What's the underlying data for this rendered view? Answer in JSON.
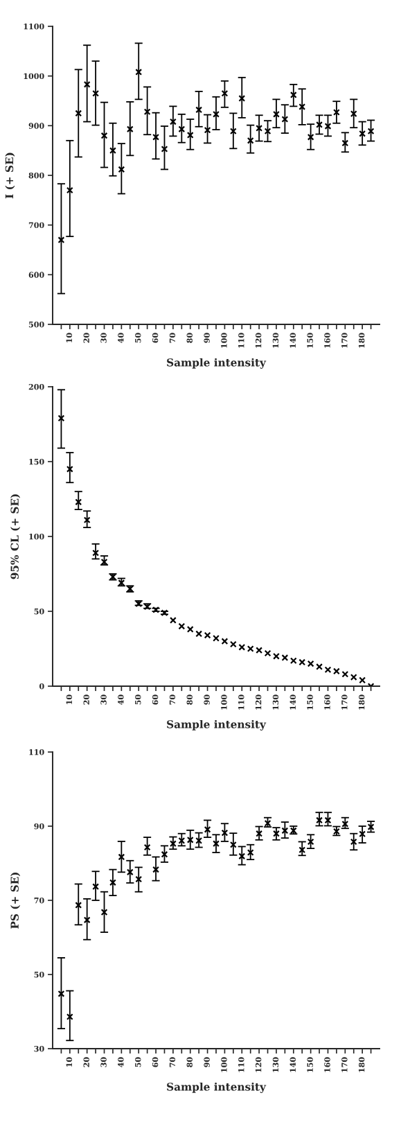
{
  "chart_data": [
    {
      "type": "scatter",
      "xlabel": "Sample intensity",
      "ylabel": "I (+ SE)",
      "marker": "cross",
      "grid": false,
      "legend": false,
      "x": [
        5,
        10,
        15,
        20,
        25,
        30,
        35,
        40,
        45,
        50,
        55,
        60,
        65,
        70,
        75,
        80,
        85,
        90,
        95,
        100,
        105,
        110,
        115,
        120,
        125,
        130,
        135,
        140,
        145,
        150,
        155,
        160,
        165,
        170,
        175,
        180,
        185
      ],
      "xlim": [
        0,
        190
      ],
      "ylim": [
        500,
        1100
      ],
      "yticks": [
        500,
        600,
        700,
        800,
        900,
        1000,
        1100
      ],
      "xticks": [
        {
          "value": 5,
          "label": null
        },
        10,
        {
          "value": 15,
          "label": null
        },
        20,
        {
          "value": 25,
          "label": null
        },
        30,
        {
          "value": 35,
          "label": null
        },
        40,
        {
          "value": 45,
          "label": null
        },
        50,
        {
          "value": 55,
          "label": null
        },
        60,
        {
          "value": 65,
          "label": null
        },
        70,
        {
          "value": 75,
          "label": null
        },
        80,
        {
          "value": 85,
          "label": null
        },
        90,
        {
          "value": 95,
          "label": null
        },
        100,
        {
          "value": 105,
          "label": null
        },
        110,
        {
          "value": 115,
          "label": null
        },
        120,
        {
          "value": 125,
          "label": null
        },
        130,
        {
          "value": 135,
          "label": null
        },
        140,
        {
          "value": 145,
          "label": null
        },
        150,
        {
          "value": 155,
          "label": null
        },
        160,
        {
          "value": 165,
          "label": null
        },
        170,
        {
          "value": 175,
          "label": null
        },
        180,
        {
          "value": 185,
          "label": null
        }
      ],
      "series": [
        {
          "color": "#000000",
          "values": [
            670,
            770,
            925,
            983,
            965,
            880,
            850,
            812,
            893,
            1008,
            928,
            877,
            853,
            908,
            893,
            881,
            932,
            891,
            923,
            965,
            889,
            955,
            870,
            895,
            889,
            923,
            913,
            962,
            938,
            877,
            902,
            899,
            927,
            865,
            924,
            884,
            889
          ],
          "errors": [
            [
              562,
              783
            ],
            [
              677,
              870
            ],
            [
              837,
              1013
            ],
            [
              908,
              1062
            ],
            [
              901,
              1030
            ],
            [
              816,
              947
            ],
            [
              799,
              905
            ],
            [
              763,
              864
            ],
            [
              840,
              948
            ],
            [
              953,
              1066
            ],
            [
              882,
              978
            ],
            [
              833,
              926
            ],
            [
              812,
              899
            ],
            [
              879,
              939
            ],
            [
              866,
              923
            ],
            [
              852,
              913
            ],
            [
              898,
              969
            ],
            [
              865,
              922
            ],
            [
              892,
              958
            ],
            [
              937,
              990
            ],
            [
              854,
              925
            ],
            [
              916,
              997
            ],
            [
              845,
              901
            ],
            [
              869,
              921
            ],
            [
              868,
              910
            ],
            [
              896,
              953
            ],
            [
              885,
              942
            ],
            [
              939,
              983
            ],
            [
              902,
              974
            ],
            [
              852,
              903
            ],
            [
              883,
              921
            ],
            [
              879,
              921
            ],
            [
              905,
              949
            ],
            [
              847,
              886
            ],
            [
              896,
              953
            ],
            [
              861,
              908
            ],
            [
              869,
              911
            ]
          ]
        }
      ]
    },
    {
      "type": "scatter",
      "xlabel": "Sample intensity",
      "ylabel": "95% CL (+ SE)",
      "marker": "cross",
      "grid": false,
      "legend": false,
      "x": [
        5,
        10,
        15,
        20,
        25,
        30,
        35,
        40,
        45,
        50,
        55,
        60,
        65,
        70,
        75,
        80,
        85,
        90,
        95,
        100,
        105,
        110,
        115,
        120,
        125,
        130,
        135,
        140,
        145,
        150,
        155,
        160,
        165,
        170,
        175,
        180,
        185
      ],
      "xlim": [
        0,
        190
      ],
      "ylim": [
        0,
        200
      ],
      "yticks": [
        0,
        50,
        100,
        150,
        200
      ],
      "xticks": [
        {
          "value": 5,
          "label": null
        },
        10,
        {
          "value": 15,
          "label": null
        },
        20,
        {
          "value": 25,
          "label": null
        },
        30,
        {
          "value": 35,
          "label": null
        },
        40,
        {
          "value": 45,
          "label": null
        },
        50,
        {
          "value": 55,
          "label": null
        },
        60,
        {
          "value": 65,
          "label": null
        },
        70,
        {
          "value": 75,
          "label": null
        },
        80,
        {
          "value": 85,
          "label": null
        },
        90,
        {
          "value": 95,
          "label": null
        },
        100,
        {
          "value": 105,
          "label": null
        },
        110,
        {
          "value": 115,
          "label": null
        },
        120,
        {
          "value": 125,
          "label": null
        },
        130,
        {
          "value": 135,
          "label": null
        },
        140,
        {
          "value": 145,
          "label": null
        },
        150,
        {
          "value": 155,
          "label": null
        },
        160,
        {
          "value": 165,
          "label": null
        },
        170,
        {
          "value": 175,
          "label": null
        },
        180,
        {
          "value": 185,
          "label": null
        }
      ],
      "series": [
        {
          "color": "#000000",
          "values": [
            179,
            145,
            123,
            111,
            89,
            83,
            73,
            69,
            65,
            55,
            53,
            51,
            49,
            44,
            40,
            38,
            35,
            34,
            32,
            30,
            28,
            26,
            25,
            24,
            22,
            20,
            19,
            17,
            16,
            15,
            13,
            11,
            10,
            8,
            6,
            4,
            0
          ],
          "errors": [
            [
              159,
              198
            ],
            [
              136,
              156
            ],
            [
              118,
              130
            ],
            [
              106,
              117
            ],
            [
              85,
              95
            ],
            [
              81,
              87
            ],
            [
              71,
              75
            ],
            [
              67,
              72
            ],
            [
              63,
              67
            ],
            [
              54,
              57
            ],
            [
              52,
              55
            ],
            [
              50,
              52
            ],
            [
              48,
              50
            ],
            null,
            null,
            null,
            null,
            null,
            null,
            null,
            null,
            null,
            null,
            null,
            null,
            null,
            null,
            null,
            null,
            null,
            null,
            null,
            null,
            null,
            null,
            null,
            null
          ]
        }
      ]
    },
    {
      "type": "scatter",
      "xlabel": "Sample intensity",
      "ylabel": "PS (+ SE)",
      "marker": "cross",
      "grid": false,
      "legend": false,
      "x": [
        5,
        10,
        15,
        20,
        25,
        30,
        35,
        40,
        45,
        50,
        55,
        60,
        65,
        70,
        75,
        80,
        85,
        90,
        95,
        100,
        105,
        110,
        115,
        120,
        125,
        130,
        135,
        140,
        145,
        150,
        155,
        160,
        165,
        170,
        175,
        180,
        185
      ],
      "xlim": [
        0,
        190
      ],
      "ylim": [
        30,
        110
      ],
      "yticks": [
        30,
        50,
        70,
        90,
        110
      ],
      "xticks": [
        {
          "value": 5,
          "label": null
        },
        10,
        {
          "value": 15,
          "label": null
        },
        20,
        {
          "value": 25,
          "label": null
        },
        30,
        {
          "value": 35,
          "label": null
        },
        40,
        {
          "value": 45,
          "label": null
        },
        50,
        {
          "value": 55,
          "label": null
        },
        60,
        {
          "value": 65,
          "label": null
        },
        70,
        {
          "value": 75,
          "label": null
        },
        80,
        {
          "value": 85,
          "label": null
        },
        90,
        {
          "value": 95,
          "label": null
        },
        100,
        {
          "value": 105,
          "label": null
        },
        110,
        {
          "value": 115,
          "label": null
        },
        120,
        {
          "value": 125,
          "label": null
        },
        130,
        {
          "value": 135,
          "label": null
        },
        140,
        {
          "value": 145,
          "label": null
        },
        150,
        {
          "value": 155,
          "label": null
        },
        160,
        {
          "value": 165,
          "label": null
        },
        170,
        {
          "value": 175,
          "label": null
        },
        180,
        {
          "value": 185,
          "label": null
        }
      ],
      "series": [
        {
          "color": "#000000",
          "values": [
            44.8,
            38.6,
            68.7,
            64.7,
            73.7,
            66.8,
            74.8,
            81.7,
            77.6,
            75.7,
            84.3,
            78.3,
            82.4,
            85.3,
            86.1,
            86.3,
            86.1,
            89.1,
            85.3,
            88.2,
            85.0,
            81.9,
            82.9,
            88.0,
            90.8,
            88.0,
            88.8,
            88.8,
            83.6,
            85.8,
            91.6,
            91.6,
            88.6,
            90.6,
            85.8,
            87.9,
            89.8
          ],
          "errors": [
            [
              35.4,
              54.5
            ],
            [
              32.2,
              45.6
            ],
            [
              63.4,
              74.4
            ],
            [
              59.4,
              70.4
            ],
            [
              70.0,
              77.8
            ],
            [
              61.4,
              72.3
            ],
            [
              71.3,
              78.3
            ],
            [
              77.6,
              85.9
            ],
            [
              74.7,
              80.7
            ],
            [
              72.3,
              78.9
            ],
            [
              82.2,
              87.0
            ],
            [
              75.3,
              81.7
            ],
            [
              80.3,
              84.7
            ],
            [
              83.8,
              87.1
            ],
            [
              84.7,
              88.0
            ],
            [
              83.8,
              88.9
            ],
            [
              84.3,
              88.2
            ],
            [
              87.0,
              91.6
            ],
            [
              82.9,
              87.7
            ],
            [
              85.9,
              90.7
            ],
            [
              82.2,
              88.1
            ],
            [
              79.6,
              84.5
            ],
            [
              81.0,
              85.0
            ],
            [
              86.3,
              89.9
            ],
            [
              89.8,
              92.3
            ],
            [
              86.3,
              89.6
            ],
            [
              86.8,
              91.1
            ],
            [
              87.9,
              90.0
            ],
            [
              82.1,
              85.8
            ],
            [
              84.0,
              87.7
            ],
            [
              90.1,
              93.7
            ],
            [
              90.1,
              93.7
            ],
            [
              87.5,
              89.9
            ],
            [
              89.4,
              92.3
            ],
            [
              83.6,
              88.0
            ],
            [
              85.5,
              90.0
            ],
            [
              88.4,
              91.3
            ]
          ]
        }
      ]
    }
  ]
}
